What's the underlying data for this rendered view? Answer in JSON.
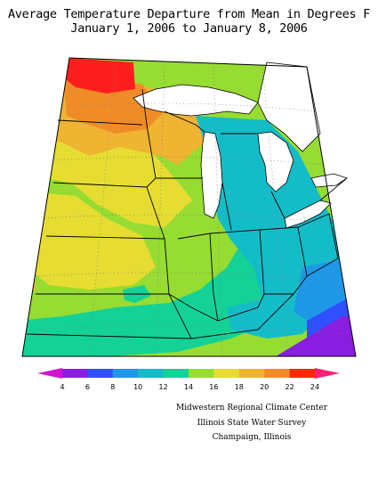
{
  "title": {
    "line1": "Average Temperature Departure from Mean in Degrees F",
    "line2": "January 1, 2006 to January 8, 2006"
  },
  "legend": {
    "ticks": [
      "4",
      "6",
      "8",
      "10",
      "12",
      "14",
      "16",
      "18",
      "20",
      "22",
      "24"
    ],
    "colors": [
      "#8a1ee0",
      "#3050ff",
      "#1e98e6",
      "#14bcc8",
      "#14d296",
      "#96dc32",
      "#e6dc32",
      "#eeb432",
      "#f08c28",
      "#ff2800",
      "#ff1e78"
    ]
  },
  "credits": {
    "line1": "Midwestern Regional Climate Center",
    "line2": "Illinois State Water Survey",
    "line3": "Champaign, Illinois"
  },
  "map": {
    "fill_colors": {
      "v24": "#ff1e1e",
      "v22": "#f08c28",
      "v20": "#eeb432",
      "v18": "#e6dc32",
      "v16": "#96dc32",
      "v14": "#14d296",
      "v12": "#14bcc8",
      "v10": "#1e98e6",
      "v8": "#3050ff",
      "v6": "#8a1ee0"
    }
  }
}
